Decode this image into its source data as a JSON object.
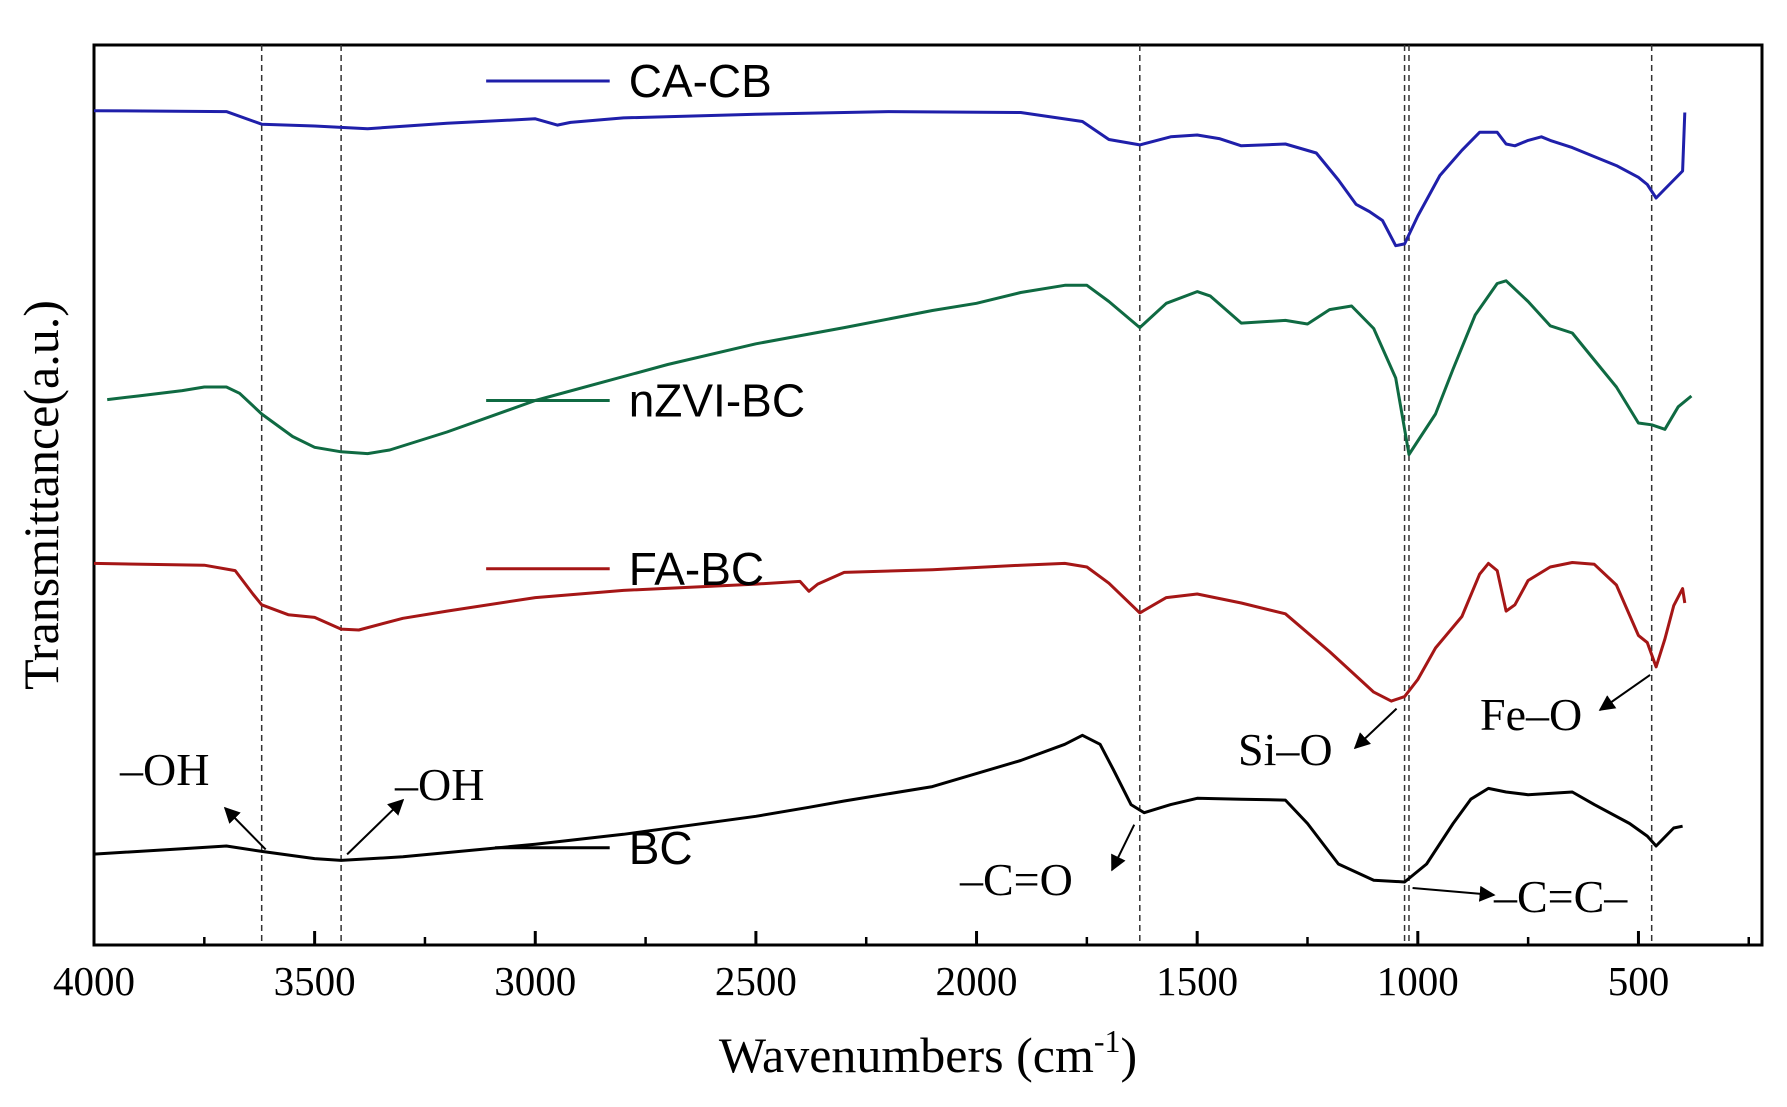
{
  "chart_data": {
    "type": "line",
    "xlabel_main": "Wavenumbers (cm",
    "xlabel_sup": "-1",
    "xlabel_end": ")",
    "ylabel": "Transmittance(a.u.)",
    "xlim": [
      4000,
      220
    ],
    "x_reversed": true,
    "xticks": [
      4000,
      3500,
      3000,
      2500,
      2000,
      1500,
      1000,
      500
    ],
    "xtick_labels": [
      "4000",
      "3500",
      "3000",
      "2500",
      "2000",
      "1500",
      "1000",
      "500"
    ],
    "y_units": "arbitrary, vertically offset traces (0 = bottom, 100 = top of plot)",
    "ylim": [
      0,
      100
    ],
    "grid": false,
    "reference_lines": [
      3620,
      3440,
      1630,
      1030,
      1020,
      470
    ],
    "series": [
      {
        "name": "CA-CB",
        "color": "#1f1faa",
        "points": [
          [
            4000,
            92.7
          ],
          [
            3700,
            92.6
          ],
          [
            3620,
            91.2
          ],
          [
            3500,
            91.0
          ],
          [
            3380,
            90.7
          ],
          [
            3200,
            91.3
          ],
          [
            3000,
            91.8
          ],
          [
            2950,
            91.1
          ],
          [
            2920,
            91.4
          ],
          [
            2800,
            91.9
          ],
          [
            2500,
            92.3
          ],
          [
            2200,
            92.6
          ],
          [
            1900,
            92.5
          ],
          [
            1760,
            91.5
          ],
          [
            1700,
            89.5
          ],
          [
            1630,
            88.9
          ],
          [
            1560,
            89.8
          ],
          [
            1500,
            90.0
          ],
          [
            1450,
            89.6
          ],
          [
            1400,
            88.8
          ],
          [
            1300,
            89.0
          ],
          [
            1230,
            88.0
          ],
          [
            1180,
            85.0
          ],
          [
            1140,
            82.3
          ],
          [
            1110,
            81.5
          ],
          [
            1080,
            80.5
          ],
          [
            1050,
            77.7
          ],
          [
            1030,
            77.9
          ],
          [
            1000,
            81.0
          ],
          [
            950,
            85.5
          ],
          [
            900,
            88.3
          ],
          [
            860,
            90.3
          ],
          [
            820,
            90.3
          ],
          [
            800,
            89.0
          ],
          [
            780,
            88.8
          ],
          [
            750,
            89.4
          ],
          [
            720,
            89.8
          ],
          [
            700,
            89.4
          ],
          [
            650,
            88.6
          ],
          [
            600,
            87.6
          ],
          [
            550,
            86.6
          ],
          [
            500,
            85.3
          ],
          [
            480,
            84.5
          ],
          [
            460,
            83.0
          ],
          [
            440,
            84.0
          ],
          [
            410,
            85.5
          ],
          [
            400,
            86.0
          ],
          [
            395,
            92.5
          ]
        ]
      },
      {
        "name": "nZVI-BC",
        "color": "#0f6a42",
        "points": [
          [
            3970,
            60.6
          ],
          [
            3900,
            61.0
          ],
          [
            3800,
            61.6
          ],
          [
            3750,
            62.0
          ],
          [
            3700,
            62.0
          ],
          [
            3670,
            61.3
          ],
          [
            3620,
            59.0
          ],
          [
            3550,
            56.5
          ],
          [
            3500,
            55.3
          ],
          [
            3440,
            54.8
          ],
          [
            3380,
            54.6
          ],
          [
            3330,
            55.0
          ],
          [
            3200,
            57.0
          ],
          [
            3000,
            60.5
          ],
          [
            2700,
            64.5
          ],
          [
            2500,
            66.8
          ],
          [
            2300,
            68.6
          ],
          [
            2100,
            70.5
          ],
          [
            2000,
            71.3
          ],
          [
            1900,
            72.5
          ],
          [
            1800,
            73.3
          ],
          [
            1750,
            73.3
          ],
          [
            1700,
            71.5
          ],
          [
            1630,
            68.6
          ],
          [
            1570,
            71.3
          ],
          [
            1500,
            72.6
          ],
          [
            1470,
            72.1
          ],
          [
            1400,
            69.1
          ],
          [
            1300,
            69.4
          ],
          [
            1250,
            69.0
          ],
          [
            1200,
            70.6
          ],
          [
            1150,
            71.0
          ],
          [
            1100,
            68.5
          ],
          [
            1050,
            63.0
          ],
          [
            1020,
            54.5
          ],
          [
            1000,
            56.0
          ],
          [
            960,
            59.0
          ],
          [
            920,
            64.0
          ],
          [
            870,
            70.0
          ],
          [
            820,
            73.5
          ],
          [
            800,
            73.8
          ],
          [
            750,
            71.5
          ],
          [
            700,
            68.8
          ],
          [
            650,
            68.0
          ],
          [
            600,
            65.0
          ],
          [
            550,
            62.0
          ],
          [
            500,
            58.0
          ],
          [
            470,
            57.8
          ],
          [
            440,
            57.3
          ],
          [
            410,
            59.8
          ],
          [
            380,
            61.0
          ]
        ]
      },
      {
        "name": "FA-BC",
        "color": "#a51616",
        "points": [
          [
            4000,
            42.4
          ],
          [
            3750,
            42.2
          ],
          [
            3680,
            41.6
          ],
          [
            3640,
            39.0
          ],
          [
            3620,
            37.8
          ],
          [
            3560,
            36.7
          ],
          [
            3500,
            36.4
          ],
          [
            3440,
            35.1
          ],
          [
            3400,
            35.0
          ],
          [
            3300,
            36.3
          ],
          [
            3200,
            37.1
          ],
          [
            3000,
            38.6
          ],
          [
            2800,
            39.4
          ],
          [
            2500,
            40.1
          ],
          [
            2400,
            40.4
          ],
          [
            2380,
            39.3
          ],
          [
            2360,
            40.1
          ],
          [
            2300,
            41.4
          ],
          [
            2100,
            41.7
          ],
          [
            1900,
            42.2
          ],
          [
            1800,
            42.4
          ],
          [
            1750,
            42.0
          ],
          [
            1700,
            40.2
          ],
          [
            1630,
            36.9
          ],
          [
            1570,
            38.6
          ],
          [
            1500,
            39.0
          ],
          [
            1400,
            38.0
          ],
          [
            1300,
            36.8
          ],
          [
            1200,
            32.6
          ],
          [
            1100,
            28.1
          ],
          [
            1060,
            27.1
          ],
          [
            1030,
            27.6
          ],
          [
            1000,
            29.5
          ],
          [
            960,
            33.0
          ],
          [
            900,
            36.5
          ],
          [
            860,
            41.2
          ],
          [
            840,
            42.4
          ],
          [
            820,
            41.6
          ],
          [
            800,
            37.1
          ],
          [
            780,
            37.8
          ],
          [
            750,
            40.5
          ],
          [
            700,
            42.0
          ],
          [
            650,
            42.5
          ],
          [
            600,
            42.3
          ],
          [
            550,
            40.0
          ],
          [
            500,
            34.4
          ],
          [
            480,
            33.6
          ],
          [
            460,
            30.9
          ],
          [
            440,
            34.0
          ],
          [
            420,
            37.7
          ],
          [
            400,
            39.6
          ],
          [
            395,
            38.0
          ]
        ]
      },
      {
        "name": "BC",
        "color": "#000000",
        "points": [
          [
            4000,
            10.1
          ],
          [
            3800,
            10.7
          ],
          [
            3700,
            11.0
          ],
          [
            3620,
            10.4
          ],
          [
            3500,
            9.6
          ],
          [
            3440,
            9.4
          ],
          [
            3300,
            9.8
          ],
          [
            3000,
            11.2
          ],
          [
            2800,
            12.3
          ],
          [
            2500,
            14.3
          ],
          [
            2380,
            15.3
          ],
          [
            2300,
            16.0
          ],
          [
            2100,
            17.6
          ],
          [
            1900,
            20.5
          ],
          [
            1800,
            22.3
          ],
          [
            1760,
            23.3
          ],
          [
            1720,
            22.3
          ],
          [
            1690,
            19.5
          ],
          [
            1650,
            15.6
          ],
          [
            1620,
            14.7
          ],
          [
            1560,
            15.6
          ],
          [
            1500,
            16.3
          ],
          [
            1400,
            16.2
          ],
          [
            1300,
            16.1
          ],
          [
            1250,
            13.5
          ],
          [
            1180,
            9.0
          ],
          [
            1100,
            7.2
          ],
          [
            1030,
            7.0
          ],
          [
            980,
            9.0
          ],
          [
            920,
            13.5
          ],
          [
            880,
            16.2
          ],
          [
            840,
            17.4
          ],
          [
            800,
            17.0
          ],
          [
            750,
            16.7
          ],
          [
            650,
            17.0
          ],
          [
            600,
            15.6
          ],
          [
            520,
            13.5
          ],
          [
            480,
            12.1
          ],
          [
            460,
            11.0
          ],
          [
            440,
            12.0
          ],
          [
            420,
            13.0
          ],
          [
            400,
            13.2
          ]
        ]
      }
    ],
    "legend": [
      {
        "label": "CA-CB",
        "color": "#1f1faa"
      },
      {
        "label": "nZVI-BC",
        "color": "#0f6a42"
      },
      {
        "label": "FA-BC",
        "color": "#a51616"
      },
      {
        "label": "BC",
        "color": "#000000"
      }
    ],
    "annotations": [
      {
        "text": "–OH",
        "target_x": 3620,
        "target_y": 10.4
      },
      {
        "text": "–OH",
        "target_x": 3440,
        "target_y": 9.4
      },
      {
        "text": "–C=O",
        "target_x": 1620,
        "target_y": 14.7
      },
      {
        "text": "Si–O",
        "target_x": 1030,
        "target_y": 27.6
      },
      {
        "text": "Fe–O",
        "target_x": 460,
        "target_y": 30.9
      },
      {
        "text": "–C=C–",
        "target_x": 1030,
        "target_y": 7.0
      }
    ]
  }
}
